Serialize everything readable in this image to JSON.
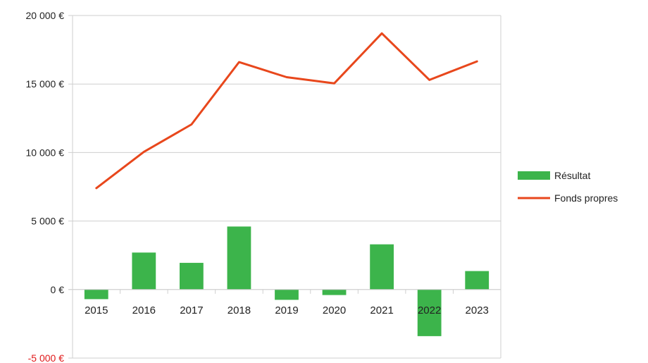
{
  "chart_data": {
    "type": "bar",
    "categories": [
      "2015",
      "2016",
      "2017",
      "2018",
      "2019",
      "2020",
      "2021",
      "2022",
      "2023"
    ],
    "series": [
      {
        "name": "Résultat",
        "kind": "bar",
        "color": "#3cb44b",
        "values": [
          -700,
          2700,
          1950,
          4600,
          -750,
          -400,
          3300,
          -3400,
          1350
        ]
      },
      {
        "name": "Fonds propres",
        "kind": "line",
        "color": "#e8471c",
        "values": [
          7400,
          10050,
          12050,
          16600,
          15500,
          15050,
          18700,
          15300,
          16650
        ]
      }
    ],
    "yticks": [
      "20 000 €",
      "15 000 €",
      "10 000 €",
      "5 000 €",
      "0 €",
      "-5 000 €"
    ],
    "ytick_values": [
      20000,
      15000,
      10000,
      5000,
      0,
      -5000
    ],
    "negative_tick_color": "#e0191a",
    "ylim": [
      -5000,
      20000
    ],
    "grid": true,
    "legend_position": "right",
    "title": "",
    "xlabel": "",
    "ylabel": ""
  }
}
